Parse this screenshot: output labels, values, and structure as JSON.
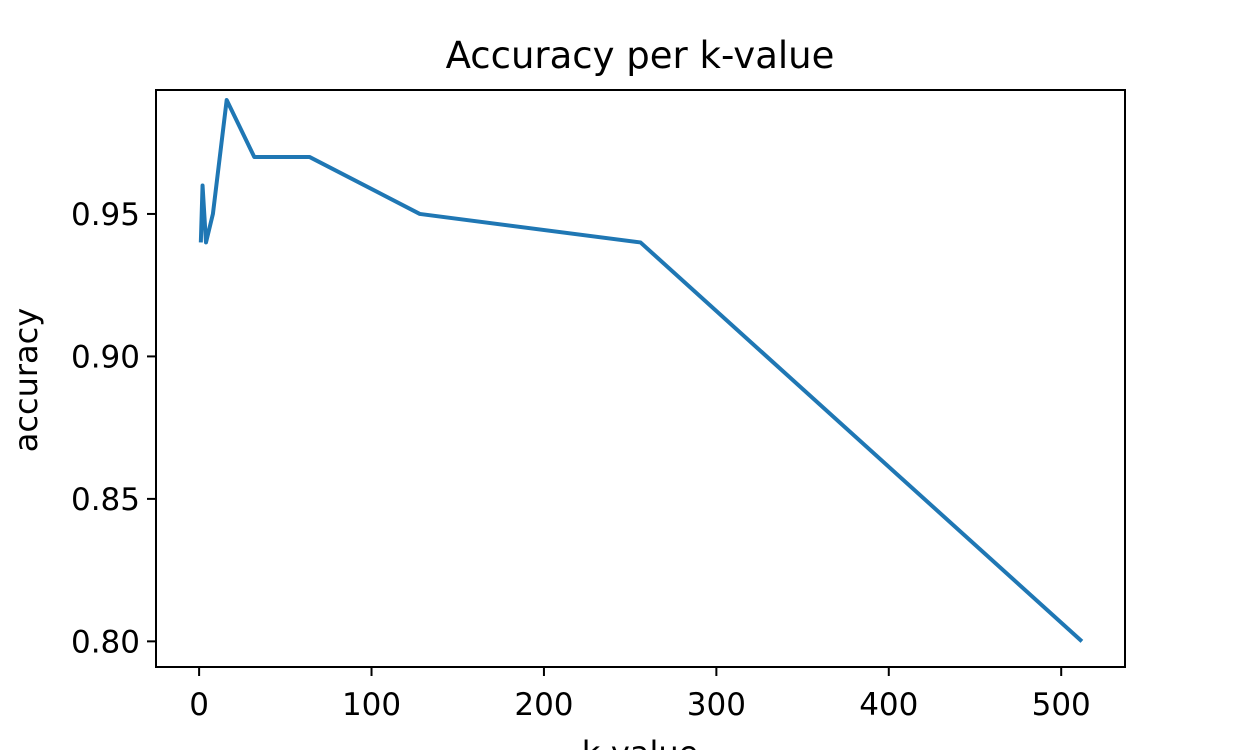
{
  "chart_data": {
    "type": "line",
    "title": "Accuracy per k-value",
    "xlabel": "k-value",
    "ylabel": "accuracy",
    "xlim": [
      -25,
      537
    ],
    "ylim": [
      0.791,
      0.9935
    ],
    "xticks": [
      0,
      100,
      200,
      300,
      400,
      500
    ],
    "xtick_labels": [
      "0",
      "100",
      "200",
      "300",
      "400",
      "500"
    ],
    "yticks": [
      0.8,
      0.85,
      0.9,
      0.95
    ],
    "ytick_labels": [
      "0.80",
      "0.85",
      "0.90",
      "0.95"
    ],
    "grid": false,
    "legend": "none",
    "series": [
      {
        "color": "#1f77b4",
        "x": [
          1,
          2,
          4,
          8,
          16,
          32,
          64,
          128,
          256,
          512
        ],
        "y": [
          0.94,
          0.96,
          0.94,
          0.95,
          0.99,
          0.97,
          0.97,
          0.95,
          0.94,
          0.8
        ]
      }
    ]
  }
}
